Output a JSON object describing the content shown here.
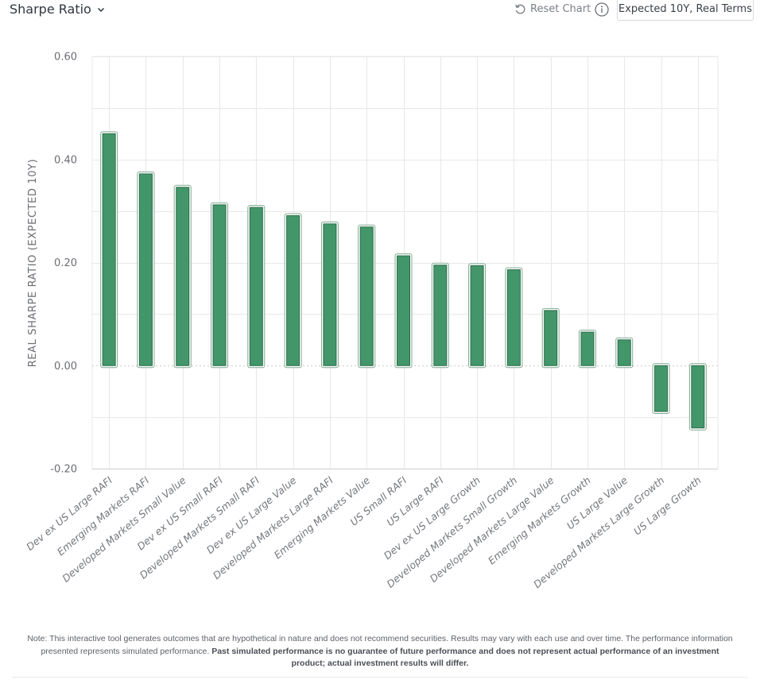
{
  "header": {
    "metric_label": "Sharpe Ratio",
    "metric_icon": "chevron-down-icon",
    "reset_label": "Reset Chart",
    "reset_icon": "reset-icon",
    "info_icon": "info-icon",
    "mode_label": "Expected 10Y, Real Terms"
  },
  "colors": {
    "bar_fill": "#43966a",
    "bar_stroke": "#2c6e49",
    "grid": "#e8e8e8",
    "axis_text": "#6b6e73"
  },
  "chart_data": {
    "type": "bar",
    "title": "Sharpe Ratio",
    "xlabel": "",
    "ylabel": "REAL SHARPE RATIO (EXPECTED 10Y)",
    "ylim": [
      -0.2,
      0.6
    ],
    "yticks": [
      -0.2,
      0.0,
      0.2,
      0.4,
      0.6
    ],
    "ytick_labels": [
      "-0.20",
      "0.00",
      "0.20",
      "0.40",
      "0.60"
    ],
    "grid": true,
    "legend": "none",
    "categories": [
      "Dev ex US Large RAFI",
      "Emerging Markets RAFI",
      "Developed Markets Small Value",
      "Dev ex US Small RAFI",
      "Developed Markets Small RAFI",
      "Dev ex US Large Value",
      "Developed Markets Large RAFI",
      "Emerging Markets Value",
      "US Small RAFI",
      "US Large RAFI",
      "Dev ex US Large Growth",
      "Developed Markets Small Growth",
      "Developed Markets Large Value",
      "Emerging Markets Growth",
      "US Large Value",
      "Developed Markets Large Growth",
      "US Large Growth"
    ],
    "values": [
      0.45,
      0.372,
      0.346,
      0.312,
      0.307,
      0.291,
      0.275,
      0.269,
      0.213,
      0.195,
      0.194,
      0.186,
      0.107,
      0.065,
      0.05,
      -0.089,
      -0.121
    ]
  },
  "footer": {
    "note_plain": "Note: This interactive tool generates outcomes that are hypothetical in nature and does not recommend securities. Results may vary with each use and over time. The performance information presented represents simulated performance. ",
    "note_bold": "Past simulated performance is no guarantee of future performance and does not represent actual performance of an investment product; actual investment results will differ."
  }
}
